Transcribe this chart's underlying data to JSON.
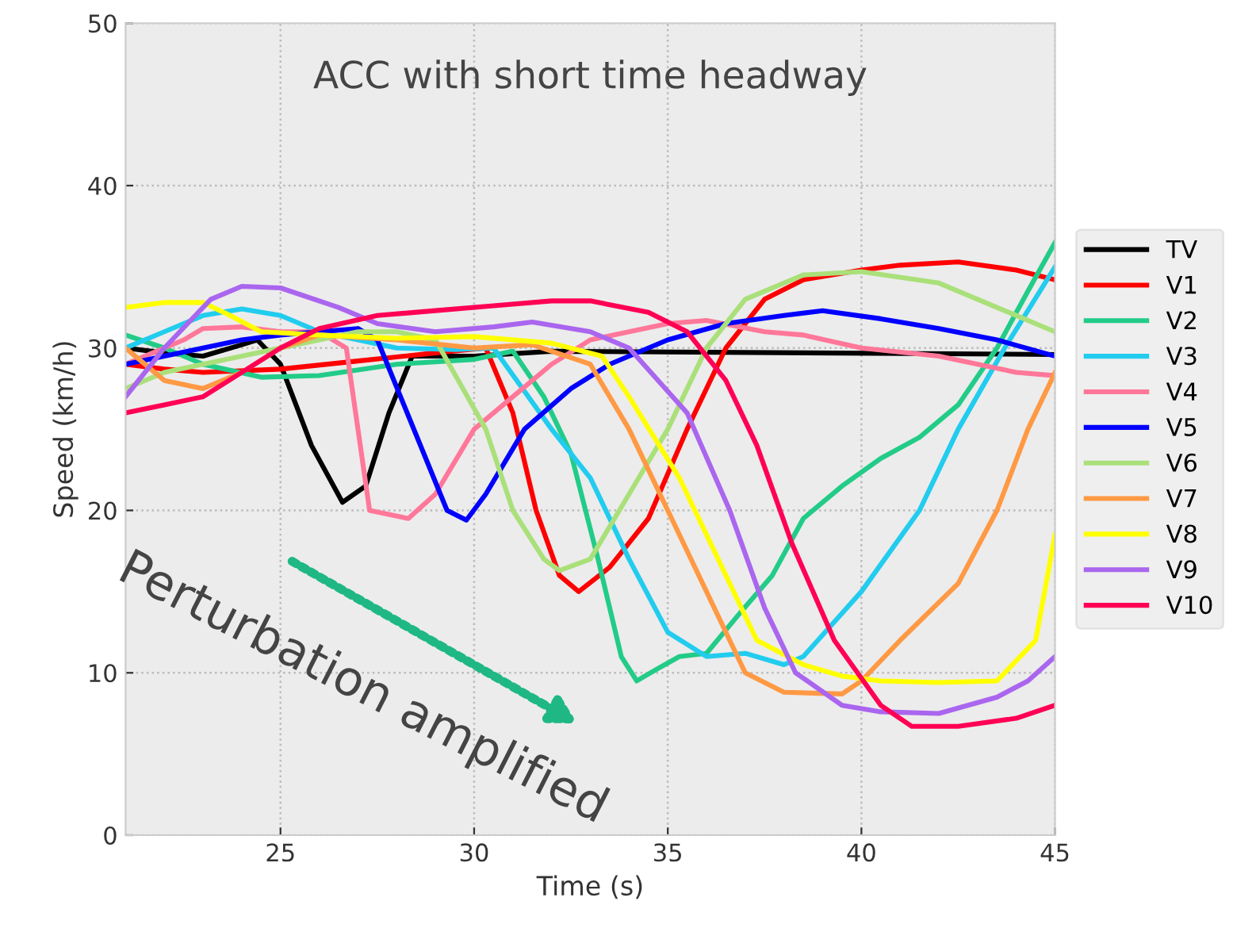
{
  "chart_data": {
    "type": "line",
    "xlabel": "Time (s)",
    "ylabel": "Speed (km/h)",
    "annotations": [
      "ACC with short time headway",
      "Perturbation amplified"
    ],
    "xlim": [
      21,
      45
    ],
    "xticks": [
      25,
      30,
      35,
      40,
      45
    ],
    "ylim": [
      0,
      50
    ],
    "yticks": [
      0,
      10,
      20,
      30,
      40,
      50
    ],
    "grid": true,
    "legend": "right",
    "marker": "none",
    "line_style": "solid",
    "series": [
      {
        "name": "TV",
        "color": "#000000",
        "x": [
          21,
          22,
          23,
          24,
          24.4,
          25,
          25.8,
          26.6,
          27.2,
          27.8,
          28.4,
          30,
          32,
          45
        ],
        "values": [
          30,
          29.7,
          29.5,
          30.2,
          30.5,
          29,
          24,
          20.5,
          21.5,
          26,
          29.5,
          29.5,
          29.8,
          29.6
        ]
      },
      {
        "name": "V1",
        "color": "#ff0000",
        "x": [
          21,
          22,
          23,
          25,
          27,
          29,
          30.3,
          31,
          31.6,
          32.2,
          32.7,
          33.5,
          34.5,
          35.5,
          36.5,
          37.5,
          38.5,
          40,
          41,
          42.5,
          44,
          45
        ],
        "values": [
          29,
          28.7,
          28.5,
          28.7,
          29.2,
          29.7,
          30,
          26,
          20,
          16,
          15,
          16.5,
          19.5,
          25,
          30,
          33,
          34.2,
          34.8,
          35.1,
          35.3,
          34.8,
          34.2
        ]
      },
      {
        "name": "V2",
        "color": "#22cc88",
        "x": [
          21,
          22,
          23,
          24.5,
          26,
          28,
          30,
          31,
          31.8,
          32.5,
          33.2,
          33.8,
          34.2,
          34.7,
          35.3,
          36,
          36.8,
          37.7,
          38.5,
          39.5,
          40.5,
          41.5,
          42.5,
          43.5,
          44.3,
          45
        ],
        "values": [
          30.8,
          30,
          29,
          28.2,
          28.3,
          29,
          29.3,
          29.8,
          27,
          23.5,
          17,
          11,
          9.5,
          10.2,
          11,
          11.2,
          13.5,
          16,
          19.5,
          21.5,
          23.2,
          24.5,
          26.5,
          30,
          33.5,
          36.5
        ]
      },
      {
        "name": "V3",
        "color": "#22ccee",
        "x": [
          21,
          22,
          23,
          24,
          25,
          26,
          27,
          28,
          29.5,
          30.5,
          32,
          33,
          34,
          35,
          36,
          37,
          38,
          38.5,
          40,
          41.5,
          42.5,
          43.7,
          45
        ],
        "values": [
          30,
          31,
          32,
          32.4,
          32,
          31,
          30.5,
          30,
          29.9,
          30,
          25,
          22,
          17,
          12.5,
          11,
          11.2,
          10.5,
          11,
          15,
          20,
          25,
          30,
          35
        ]
      },
      {
        "name": "V4",
        "color": "#ff7799",
        "x": [
          21,
          22.5,
          23,
          24,
          25,
          26,
          26.7,
          27.3,
          28.3,
          29,
          30,
          31,
          32,
          33,
          34,
          35,
          36,
          37.5,
          38.5,
          40,
          42,
          44,
          45
        ],
        "values": [
          29,
          30.5,
          31.2,
          31.3,
          31,
          31,
          30,
          20,
          19.5,
          21,
          25,
          27,
          29,
          30.5,
          31,
          31.5,
          31.7,
          31,
          30.8,
          30,
          29.5,
          28.5,
          28.3
        ]
      },
      {
        "name": "V5",
        "color": "#0000ff",
        "x": [
          21,
          22,
          23,
          24,
          25,
          26,
          27,
          27.5,
          29.3,
          29.8,
          30.3,
          31.3,
          32.5,
          33.5,
          35,
          36.5,
          38,
          39,
          40.5,
          42,
          43.5,
          45
        ],
        "values": [
          29,
          29.5,
          30,
          30.5,
          30.8,
          31,
          31.2,
          30.5,
          20,
          19.4,
          21,
          25,
          27.5,
          29,
          30.5,
          31.5,
          32,
          32.3,
          31.8,
          31.2,
          30.5,
          29.5
        ]
      },
      {
        "name": "V6",
        "color": "#aae07a",
        "x": [
          21,
          22,
          23,
          24,
          25,
          26,
          27,
          28,
          29,
          30.3,
          31,
          31.8,
          32.2,
          33,
          34,
          35,
          36,
          37,
          38.5,
          40,
          42,
          43.5,
          45
        ],
        "values": [
          27.5,
          28.5,
          29,
          29.5,
          30,
          30.5,
          31,
          31,
          30.5,
          25,
          20,
          17,
          16.3,
          17,
          21,
          25,
          30,
          33,
          34.5,
          34.7,
          34,
          32.5,
          31
        ]
      },
      {
        "name": "V7",
        "color": "#ff9944",
        "x": [
          21,
          22,
          23,
          24,
          25,
          26,
          28,
          30,
          31.5,
          33,
          34,
          35,
          36,
          37,
          38,
          39.5,
          40,
          41,
          42.5,
          43.5,
          44.3,
          45
        ],
        "values": [
          30,
          28,
          27.5,
          28.5,
          30,
          30.8,
          30.5,
          30,
          30.2,
          29,
          25,
          20,
          15,
          10,
          8.8,
          8.7,
          9.5,
          12,
          15.5,
          20,
          25,
          28.5
        ]
      },
      {
        "name": "V8",
        "color": "#ffff00",
        "x": [
          21,
          22,
          23,
          23.7,
          24.5,
          26,
          28,
          30,
          32,
          33.3,
          34,
          35.3,
          36.3,
          37.3,
          38.5,
          39.5,
          40.5,
          42,
          43.5,
          44.5,
          45
        ],
        "values": [
          32.5,
          32.8,
          32.8,
          32,
          31,
          30.8,
          30.6,
          30.7,
          30.3,
          29.5,
          27,
          22,
          17,
          12,
          10.5,
          9.8,
          9.5,
          9.4,
          9.5,
          12,
          18.5
        ]
      },
      {
        "name": "V9",
        "color": "#aa66ee",
        "x": [
          21,
          22,
          23.2,
          24,
          25,
          26.5,
          27.5,
          29,
          30.5,
          31.5,
          33,
          34,
          35.5,
          36.6,
          37.5,
          38.3,
          39.5,
          40.5,
          42,
          43.5,
          44.3,
          45
        ],
        "values": [
          27,
          30,
          33,
          33.8,
          33.7,
          32.5,
          31.5,
          31,
          31.3,
          31.6,
          31,
          30,
          26,
          20,
          14,
          10,
          8,
          7.6,
          7.5,
          8.5,
          9.5,
          11
        ]
      },
      {
        "name": "V10",
        "color": "#ff0055",
        "x": [
          21,
          22,
          23,
          24,
          25,
          26,
          27.5,
          29,
          30.5,
          32,
          33,
          34.5,
          35.5,
          36.5,
          37.3,
          38.2,
          39.3,
          40.5,
          41.3,
          42.5,
          44,
          45
        ],
        "values": [
          26,
          26.5,
          27,
          28.5,
          30,
          31.2,
          32,
          32.3,
          32.6,
          32.9,
          32.9,
          32.2,
          31,
          28,
          24,
          18,
          12,
          8,
          6.7,
          6.7,
          7.2,
          8
        ]
      }
    ]
  }
}
